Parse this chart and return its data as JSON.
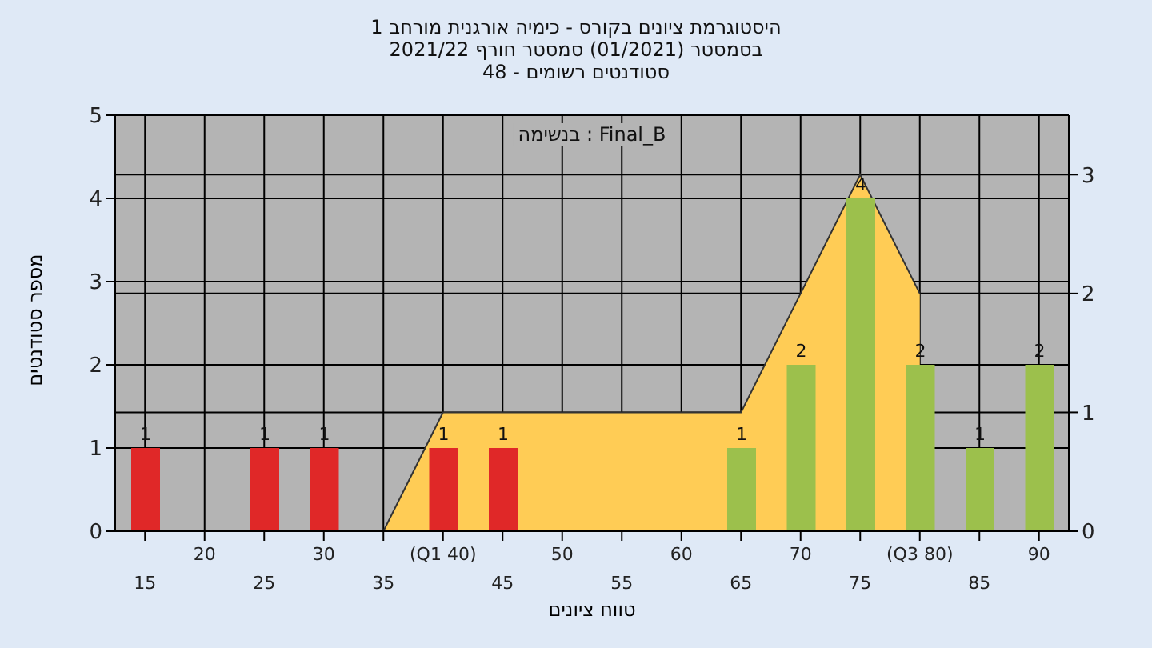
{
  "chart_data": {
    "type": "bar",
    "title": "היסטוגרמת ציונים בקורס - כימיה אורגנית מורחב 1",
    "subtitle": "בסמסטר (01/2021) סמסטר חורף 2021/22\nסטודנטים רשומים - 48",
    "xlabel": "טווח ציונים",
    "ylabel": "מספר סטודנטים",
    "annotations": [
      "בנשימה : Final_B"
    ],
    "categories": [
      "15",
      "20",
      "25",
      "30",
      "35",
      "(Q1 40)",
      "45",
      "50",
      "55",
      "60",
      "65",
      "70",
      "75",
      "(Q3 80)",
      "85",
      "90"
    ],
    "series": [
      {
        "colors": [
          "#e02828",
          "#e02828",
          "#e02828",
          "#e02828",
          "#e02828",
          "#e02828",
          "#e02828",
          "#e02828",
          "#e02828",
          "#e02828",
          "#9cc04c",
          "#9cc04c",
          "#9cc04c",
          "#9cc04c",
          "#9cc04c",
          "#9cc04c"
        ],
        "values": [
          1,
          0,
          1,
          1,
          0,
          1,
          1,
          0,
          0,
          0,
          1,
          2,
          4,
          2,
          1,
          2
        ],
        "value_labels": [
          "1",
          null,
          "1",
          "1",
          null,
          "1",
          "1",
          null,
          null,
          null,
          "1",
          "2",
          "4",
          "2",
          "1",
          "2"
        ]
      },
      {
        "type": "area",
        "axis": "y2",
        "color": "#ffcc55",
        "values": [
          null,
          null,
          null,
          null,
          0,
          1,
          1,
          1,
          1,
          1,
          1,
          2,
          3,
          2,
          null,
          null
        ]
      }
    ],
    "ylim": [
      0,
      5
    ],
    "yticks": [
      0,
      1,
      2,
      3,
      4,
      5
    ],
    "y2lim": [
      0,
      3.5
    ],
    "y2ticks": [
      0,
      1,
      2,
      3
    ],
    "grid": true
  }
}
